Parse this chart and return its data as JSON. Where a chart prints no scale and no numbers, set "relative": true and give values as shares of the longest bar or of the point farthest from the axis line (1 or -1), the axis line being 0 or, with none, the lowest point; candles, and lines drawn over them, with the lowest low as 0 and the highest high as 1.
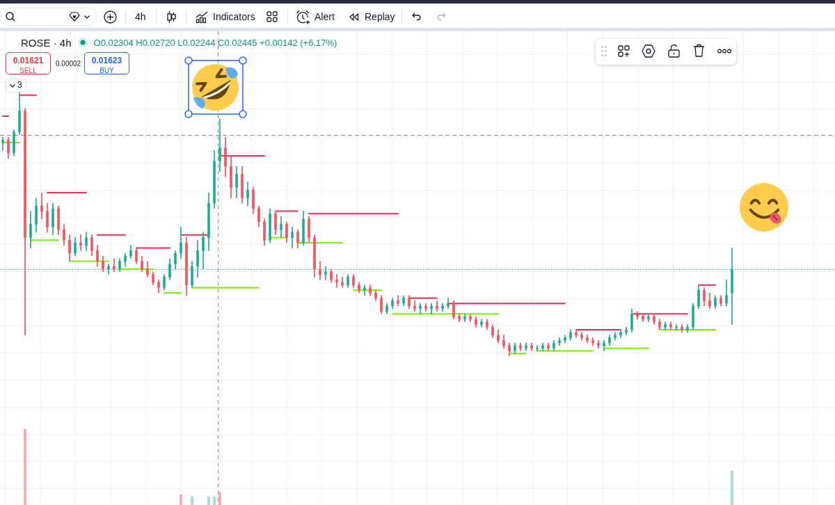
{
  "chart_data": [
    {
      "type": "candlestick",
      "title": "ROSE · 4h",
      "annotations": [
        "4h",
        "Indicators",
        "Alert",
        "Replay",
        "O0.02304 H0.02720 L0.02244 C0.02445 +0.00142 (+6.17%)",
        "0.01621",
        "SELL",
        "0.00002",
        "0.01623",
        "BUY",
        "3"
      ],
      "relative": true,
      "grid": true,
      "categories": [
        null,
        null,
        null,
        null,
        null,
        null,
        null,
        null,
        null,
        null,
        null,
        null,
        null,
        null,
        null,
        null,
        null,
        null,
        null,
        null,
        null,
        null,
        null,
        null,
        null,
        null,
        null,
        null,
        null,
        null,
        null,
        null,
        null,
        null,
        null,
        null,
        null,
        null,
        null,
        null,
        null,
        null,
        null,
        null,
        null,
        null,
        null,
        null,
        null,
        null,
        null,
        null,
        null,
        null,
        null,
        null,
        null,
        null,
        null,
        null,
        null,
        null,
        null,
        null,
        null,
        null,
        null,
        null,
        null,
        null,
        null,
        null,
        null,
        null,
        null,
        null,
        null,
        null,
        null,
        null,
        null,
        null,
        null,
        null,
        null,
        null,
        null,
        null,
        null,
        null,
        null,
        null,
        null,
        null,
        null,
        null,
        null,
        null,
        null,
        null,
        null,
        null,
        null,
        null,
        null,
        null,
        null,
        null,
        null,
        null,
        null,
        null,
        null,
        null,
        null,
        null,
        null,
        null,
        null,
        null,
        null,
        null,
        null,
        null,
        null,
        null,
        null,
        null,
        null,
        null,
        null,
        null,
        null,
        null,
        null,
        null,
        null,
        null,
        null,
        null,
        null,
        null,
        null,
        null,
        null,
        null,
        null,
        null,
        null,
        null
      ],
      "ohlc": [
        [
          0.81,
          0.83,
          0.78,
          0.82
        ],
        [
          0.82,
          0.83,
          0.75,
          0.77
        ],
        [
          0.77,
          0.86,
          0.76,
          0.85
        ],
        [
          0.85,
          1,
          0.84,
          0.93
        ],
        [
          0.93,
          0.94,
          0.08,
          0.45
        ],
        [
          0.45,
          0.55,
          0.41,
          0.5
        ],
        [
          0.5,
          0.6,
          0.47,
          0.57
        ],
        [
          0.57,
          0.62,
          0.52,
          0.55
        ],
        [
          0.55,
          0.58,
          0.47,
          0.49
        ],
        [
          0.49,
          0.58,
          0.46,
          0.56
        ],
        [
          0.56,
          0.57,
          0.46,
          0.48
        ],
        [
          0.48,
          0.5,
          0.42,
          0.44
        ],
        [
          0.44,
          0.46,
          0.36,
          0.39
        ],
        [
          0.39,
          0.45,
          0.38,
          0.43
        ],
        [
          0.43,
          0.46,
          0.4,
          0.42
        ],
        [
          0.42,
          0.47,
          0.4,
          0.45
        ],
        [
          0.45,
          0.46,
          0.38,
          0.4
        ],
        [
          0.4,
          0.42,
          0.34,
          0.36
        ],
        [
          0.36,
          0.38,
          0.32,
          0.33
        ],
        [
          0.33,
          0.35,
          0.31,
          0.34
        ],
        [
          0.34,
          0.37,
          0.32,
          0.33
        ],
        [
          0.33,
          0.37,
          0.32,
          0.36
        ],
        [
          0.36,
          0.39,
          0.34,
          0.38
        ],
        [
          0.38,
          0.42,
          0.37,
          0.4
        ],
        [
          0.4,
          0.41,
          0.35,
          0.36
        ],
        [
          0.36,
          0.38,
          0.32,
          0.33
        ],
        [
          0.33,
          0.36,
          0.3,
          0.31
        ],
        [
          0.31,
          0.32,
          0.27,
          0.28
        ],
        [
          0.28,
          0.29,
          0.24,
          0.26
        ],
        [
          0.26,
          0.31,
          0.25,
          0.3
        ],
        [
          0.3,
          0.37,
          0.29,
          0.35
        ],
        [
          0.35,
          0.4,
          0.33,
          0.39
        ],
        [
          0.39,
          0.49,
          0.37,
          0.43
        ],
        [
          0.43,
          0.45,
          0.23,
          0.27
        ],
        [
          0.27,
          0.36,
          0.26,
          0.34
        ],
        [
          0.34,
          0.44,
          0.3,
          0.4
        ],
        [
          0.4,
          0.47,
          0.33,
          0.45
        ],
        [
          0.45,
          0.62,
          0.4,
          0.58
        ],
        [
          0.58,
          0.78,
          0.56,
          0.74
        ],
        [
          0.74,
          0.9,
          0.7,
          0.79
        ],
        [
          0.79,
          0.83,
          0.68,
          0.72
        ],
        [
          0.72,
          0.76,
          0.6,
          0.64
        ],
        [
          0.64,
          0.72,
          0.6,
          0.69
        ],
        [
          0.69,
          0.72,
          0.58,
          0.6
        ],
        [
          0.6,
          0.66,
          0.57,
          0.63
        ],
        [
          0.63,
          0.64,
          0.54,
          0.56
        ],
        [
          0.56,
          0.57,
          0.49,
          0.51
        ],
        [
          0.51,
          0.52,
          0.42,
          0.44
        ],
        [
          0.44,
          0.56,
          0.43,
          0.54
        ],
        [
          0.54,
          0.55,
          0.46,
          0.48
        ],
        [
          0.48,
          0.53,
          0.45,
          0.5
        ],
        [
          0.5,
          0.51,
          0.43,
          0.45
        ],
        [
          0.45,
          0.49,
          0.41,
          0.47
        ],
        [
          0.47,
          0.48,
          0.41,
          0.43
        ],
        [
          0.43,
          0.55,
          0.42,
          0.52
        ],
        [
          0.52,
          0.53,
          0.43,
          0.45
        ],
        [
          0.45,
          0.46,
          0.3,
          0.33
        ],
        [
          0.33,
          0.36,
          0.29,
          0.31
        ],
        [
          0.31,
          0.34,
          0.29,
          0.32
        ],
        [
          0.32,
          0.33,
          0.28,
          0.29
        ],
        [
          0.29,
          0.31,
          0.26,
          0.28
        ],
        [
          0.28,
          0.3,
          0.26,
          0.27
        ],
        [
          0.27,
          0.31,
          0.26,
          0.3
        ],
        [
          0.3,
          0.31,
          0.26,
          0.27
        ],
        [
          0.27,
          0.28,
          0.24,
          0.25
        ],
        [
          0.25,
          0.27,
          0.23,
          0.26
        ],
        [
          0.26,
          0.27,
          0.23,
          0.24
        ],
        [
          0.24,
          0.25,
          0.21,
          0.22
        ],
        [
          0.22,
          0.23,
          0.16,
          0.17
        ],
        [
          0.17,
          0.2,
          0.16,
          0.19
        ],
        [
          0.19,
          0.22,
          0.18,
          0.21
        ],
        [
          0.21,
          0.23,
          0.19,
          0.2
        ],
        [
          0.2,
          0.23,
          0.19,
          0.22
        ],
        [
          0.22,
          0.23,
          0.18,
          0.19
        ],
        [
          0.19,
          0.21,
          0.17,
          0.18
        ],
        [
          0.18,
          0.2,
          0.16,
          0.19
        ],
        [
          0.19,
          0.2,
          0.17,
          0.18
        ],
        [
          0.18,
          0.2,
          0.16,
          0.19
        ],
        [
          0.19,
          0.21,
          0.17,
          0.18
        ],
        [
          0.18,
          0.2,
          0.17,
          0.19
        ],
        [
          0.19,
          0.22,
          0.18,
          0.2
        ],
        [
          0.2,
          0.21,
          0.14,
          0.15
        ],
        [
          0.15,
          0.16,
          0.13,
          0.14
        ],
        [
          0.14,
          0.16,
          0.13,
          0.15
        ],
        [
          0.15,
          0.16,
          0.13,
          0.14
        ],
        [
          0.14,
          0.15,
          0.11,
          0.12
        ],
        [
          0.12,
          0.14,
          0.11,
          0.13
        ],
        [
          0.13,
          0.14,
          0.1,
          0.11
        ],
        [
          0.11,
          0.12,
          0.07,
          0.08
        ],
        [
          0.08,
          0.1,
          0.05,
          0.06
        ],
        [
          0.06,
          0.08,
          0.03,
          0.04
        ],
        [
          0.04,
          0.05,
          0,
          0.02
        ],
        [
          0.02,
          0.05,
          0.01,
          0.04
        ],
        [
          0.04,
          0.05,
          0.02,
          0.03
        ],
        [
          0.03,
          0.05,
          0.02,
          0.04
        ],
        [
          0.04,
          0.05,
          0.02,
          0.03
        ],
        [
          0.03,
          0.04,
          0.02,
          0.03
        ],
        [
          0.03,
          0.05,
          0.02,
          0.04
        ],
        [
          0.04,
          0.05,
          0.02,
          0.03
        ],
        [
          0.03,
          0.06,
          0.02,
          0.05
        ],
        [
          0.05,
          0.07,
          0.04,
          0.06
        ],
        [
          0.06,
          0.08,
          0.05,
          0.07
        ],
        [
          0.07,
          0.1,
          0.06,
          0.09
        ],
        [
          0.09,
          0.1,
          0.07,
          0.08
        ],
        [
          0.08,
          0.09,
          0.06,
          0.07
        ],
        [
          0.07,
          0.08,
          0.05,
          0.06
        ],
        [
          0.06,
          0.07,
          0.04,
          0.05
        ],
        [
          0.05,
          0.06,
          0.03,
          0.04
        ],
        [
          0.04,
          0.06,
          0.02,
          0.05
        ],
        [
          0.05,
          0.08,
          0.04,
          0.07
        ],
        [
          0.07,
          0.09,
          0.06,
          0.08
        ],
        [
          0.08,
          0.1,
          0.07,
          0.09
        ],
        [
          0.09,
          0.11,
          0.08,
          0.1
        ],
        [
          0.1,
          0.18,
          0.09,
          0.16
        ],
        [
          0.16,
          0.17,
          0.14,
          0.15
        ],
        [
          0.15,
          0.16,
          0.13,
          0.14
        ],
        [
          0.14,
          0.16,
          0.13,
          0.15
        ],
        [
          0.15,
          0.16,
          0.12,
          0.13
        ],
        [
          0.13,
          0.14,
          0.1,
          0.11
        ],
        [
          0.11,
          0.13,
          0.1,
          0.12
        ],
        [
          0.12,
          0.13,
          0.1,
          0.11
        ],
        [
          0.11,
          0.12,
          0.1,
          0.11
        ],
        [
          0.11,
          0.12,
          0.09,
          0.1
        ],
        [
          0.1,
          0.12,
          0.09,
          0.11
        ],
        [
          0.11,
          0.2,
          0.1,
          0.19
        ],
        [
          0.19,
          0.27,
          0.18,
          0.25
        ],
        [
          0.25,
          0.26,
          0.19,
          0.21
        ],
        [
          0.21,
          0.24,
          0.18,
          0.19
        ],
        [
          0.19,
          0.23,
          0.18,
          0.22
        ],
        [
          0.22,
          0.23,
          0.19,
          0.2
        ],
        [
          0.2,
          0.29,
          0.19,
          0.23
        ],
        [
          0.24,
          0.41,
          0.12,
          0.33
        ],
        null,
        null,
        null,
        null,
        null,
        null,
        null,
        null,
        null,
        null,
        null,
        null,
        null,
        null,
        null,
        null,
        null,
        null
      ],
      "colors": [
        "#22ab94",
        "#f7525f",
        "#22ab94",
        "#22ab94",
        "#f7525f",
        "#22ab94",
        "#22ab94",
        "#f7525f",
        "#f7525f",
        "#22ab94",
        "#f7525f",
        "#f7525f",
        "#f7525f",
        "#22ab94",
        "#f7525f",
        "#22ab94",
        "#f7525f",
        "#f7525f",
        "#f7525f",
        "#22ab94",
        "#f7525f",
        "#22ab94",
        "#22ab94",
        "#22ab94",
        "#f7525f",
        "#f7525f",
        "#f7525f",
        "#f7525f",
        "#f7525f",
        "#22ab94",
        "#22ab94",
        "#22ab94",
        "#22ab94",
        "#f7525f",
        "#22ab94",
        "#22ab94",
        "#22ab94",
        "#22ab94",
        "#22ab94",
        "#22ab94",
        "#f7525f",
        "#f7525f",
        "#22ab94",
        "#f7525f",
        "#22ab94",
        "#f7525f",
        "#f7525f",
        "#f7525f",
        "#22ab94",
        "#f7525f",
        "#22ab94",
        "#f7525f",
        "#22ab94",
        "#f7525f",
        "#22ab94",
        "#f7525f",
        "#f7525f",
        "#f7525f",
        "#22ab94",
        "#f7525f",
        "#f7525f",
        "#f7525f",
        "#22ab94",
        "#f7525f",
        "#f7525f",
        "#22ab94",
        "#f7525f",
        "#f7525f",
        "#f7525f",
        "#22ab94",
        "#22ab94",
        "#f7525f",
        "#22ab94",
        "#f7525f",
        "#f7525f",
        "#22ab94",
        "#f7525f",
        "#22ab94",
        "#f7525f",
        "#22ab94",
        "#22ab94",
        "#f7525f",
        "#f7525f",
        "#22ab94",
        "#f7525f",
        "#f7525f",
        "#22ab94",
        "#f7525f",
        "#f7525f",
        "#f7525f",
        "#f7525f",
        "#f7525f",
        "#22ab94",
        "#f7525f",
        "#22ab94",
        "#f7525f",
        "#22ab94",
        "#22ab94",
        "#f7525f",
        "#22ab94",
        "#22ab94",
        "#22ab94",
        "#22ab94",
        "#f7525f",
        "#f7525f",
        "#f7525f",
        "#f7525f",
        "#f7525f",
        "#22ab94",
        "#22ab94",
        "#22ab94",
        "#22ab94",
        "#22ab94",
        "#22ab94",
        "#f7525f",
        "#f7525f",
        "#22ab94",
        "#f7525f",
        "#f7525f",
        "#22ab94",
        "#f7525f",
        "#22ab94",
        "#f7525f",
        "#22ab94",
        "#22ab94",
        "#22ab94",
        "#f7525f",
        "#f7525f",
        "#22ab94",
        "#f7525f",
        "#22ab94",
        "#22ab94",
        null,
        null,
        null,
        null,
        null,
        null,
        null,
        null,
        null,
        null,
        null,
        null,
        null,
        null,
        null,
        null,
        null,
        null
      ],
      "series": [
        {
          "type": "line",
          "color": "#f5295a",
          "values": [
            0.91,
            0.91,
            null,
            0.99,
            0.99,
            0.99,
            0.99,
            null,
            0.62,
            0.62,
            0.62,
            0.62,
            0.62,
            0.62,
            0.62,
            0.62,
            null,
            0.46,
            0.46,
            0.46,
            0.46,
            0.46,
            0.46,
            null,
            0.41,
            0.41,
            0.41,
            0.41,
            0.41,
            0.41,
            0.41,
            null,
            0.46,
            0.46,
            0.46,
            0.46,
            0.46,
            0.46,
            null,
            0.76,
            0.76,
            0.76,
            0.76,
            0.76,
            0.76,
            0.76,
            0.76,
            0.76,
            null,
            0.55,
            0.55,
            0.55,
            0.55,
            0.55,
            null,
            0.54,
            0.54,
            0.54,
            0.54,
            0.54,
            0.54,
            0.54,
            0.54,
            0.54,
            0.54,
            0.54,
            0.54,
            0.54,
            0.54,
            0.54,
            0.54,
            0.54,
            null,
            0.22,
            0.22,
            0.22,
            0.22,
            0.22,
            0.22,
            null,
            0.2,
            0.2,
            0.2,
            0.2,
            0.2,
            0.2,
            0.2,
            0.2,
            0.2,
            0.2,
            0.2,
            0.2,
            0.2,
            0.2,
            0.2,
            0.2,
            0.2,
            0.2,
            0.2,
            0.2,
            0.2,
            0.2,
            null,
            0.1,
            0.1,
            0.1,
            0.1,
            0.1,
            0.1,
            0.1,
            0.1,
            0.1,
            null,
            0.16,
            0.16,
            0.16,
            0.16,
            0.16,
            0.16,
            0.16,
            0.16,
            0.16,
            0.16,
            0.16,
            null,
            0.27,
            0.27,
            0.27,
            0.27,
            null,
            null,
            null,
            null,
            null,
            null,
            null,
            null,
            null,
            null,
            null,
            null,
            null,
            null,
            null,
            null,
            null,
            null,
            null,
            null,
            null
          ]
        },
        {
          "type": "line",
          "color": "#78f000",
          "values": [
            0.81,
            0.81,
            0.81,
            0.81,
            null,
            0.44,
            0.44,
            0.44,
            0.44,
            0.44,
            0.44,
            null,
            0.36,
            0.36,
            0.36,
            0.36,
            0.36,
            0.36,
            0.36,
            0.36,
            null,
            0.33,
            0.33,
            0.33,
            0.33,
            0.33,
            0.33,
            0.33,
            null,
            0.24,
            0.24,
            0.24,
            0.24,
            null,
            0.26,
            0.26,
            0.26,
            0.26,
            0.26,
            0.26,
            0.26,
            0.26,
            0.26,
            0.26,
            0.26,
            0.26,
            0.26,
            null,
            0.45,
            0.45,
            0.45,
            0.45,
            null,
            0.43,
            0.43,
            0.43,
            0.43,
            0.43,
            0.43,
            0.43,
            0.43,
            0.43,
            null,
            0.25,
            0.25,
            0.25,
            0.25,
            0.25,
            0.25,
            null,
            0.16,
            0.16,
            0.16,
            0.16,
            0.16,
            0.16,
            0.16,
            0.16,
            0.16,
            0.16,
            0.16,
            0.16,
            0.16,
            0.16,
            0.16,
            0.16,
            0.16,
            0.16,
            0.16,
            0.16,
            null,
            0.01,
            0.01,
            0.01,
            0.01,
            null,
            0.02,
            0.02,
            0.02,
            0.02,
            0.02,
            0.02,
            0.02,
            0.02,
            0.02,
            0.02,
            0.02,
            null,
            0.03,
            0.03,
            0.03,
            0.03,
            0.03,
            0.03,
            0.03,
            0.03,
            0.03,
            null,
            0.1,
            0.1,
            0.1,
            0.1,
            0.1,
            0.1,
            0.1,
            0.1,
            0.1,
            0.1,
            0.1,
            null,
            null,
            null,
            null,
            null,
            null,
            null,
            null,
            null,
            null,
            null,
            null,
            null,
            null,
            null,
            null,
            null,
            null,
            null,
            null,
            null
          ]
        }
      ],
      "ref_lines": [
        {
          "axis": "y",
          "value": 0.33,
          "color": "#22ab94",
          "line_style": "dotted"
        },
        {
          "axis": "y",
          "value": 0.84,
          "color": "#9598a1",
          "line_style": "dashed"
        }
      ]
    },
    {
      "type": "bar",
      "relative": true,
      "categories": [
        null,
        null,
        null,
        null,
        null,
        null,
        null,
        null,
        null,
        null,
        null,
        null,
        null,
        null,
        null,
        null,
        null,
        null,
        null,
        null,
        null,
        null,
        null,
        null,
        null,
        null,
        null,
        null,
        null,
        null,
        null,
        null,
        null,
        null,
        null,
        null,
        null,
        null,
        null,
        null,
        null,
        null,
        null,
        null,
        null,
        null,
        null,
        null,
        null,
        null,
        null,
        null,
        null,
        null,
        null,
        null,
        null,
        null,
        null,
        null,
        null,
        null,
        null,
        null,
        null,
        null,
        null,
        null,
        null,
        null,
        null,
        null,
        null,
        null,
        null,
        null,
        null,
        null,
        null,
        null,
        null,
        null,
        null,
        null,
        null,
        null,
        null,
        null,
        null,
        null,
        null,
        null,
        null,
        null,
        null,
        null,
        null,
        null,
        null,
        null,
        null,
        null,
        null,
        null,
        null,
        null,
        null,
        null,
        null,
        null,
        null,
        null,
        null,
        null,
        null,
        null,
        null,
        null,
        null,
        null,
        null,
        null,
        null,
        null,
        null,
        null,
        null,
        null,
        null,
        null,
        null,
        null,
        null,
        null,
        null,
        null,
        null,
        null,
        null,
        null,
        null,
        null,
        null,
        null,
        null,
        null,
        null,
        null,
        null,
        null
      ],
      "values": [
        null,
        null,
        null,
        null,
        1,
        null,
        null,
        null,
        null,
        null,
        null,
        null,
        null,
        null,
        null,
        null,
        null,
        null,
        null,
        null,
        null,
        null,
        null,
        null,
        null,
        null,
        null,
        null,
        null,
        null,
        null,
        null,
        0.14,
        null,
        0.11,
        null,
        null,
        0.11,
        0.11,
        0.17,
        null,
        null,
        null,
        null,
        null,
        null,
        null,
        null,
        null,
        null,
        null,
        null,
        null,
        null,
        null,
        null,
        null,
        null,
        null,
        null,
        null,
        null,
        null,
        null,
        null,
        null,
        null,
        null,
        null,
        null,
        null,
        null,
        null,
        null,
        null,
        null,
        null,
        null,
        null,
        null,
        null,
        null,
        null,
        null,
        null,
        null,
        null,
        null,
        null,
        null,
        null,
        null,
        null,
        null,
        null,
        null,
        null,
        null,
        null,
        null,
        null,
        null,
        null,
        null,
        null,
        null,
        null,
        null,
        null,
        null,
        null,
        null,
        null,
        null,
        null,
        null,
        null,
        null,
        null,
        null,
        null,
        null,
        null,
        null,
        null,
        null,
        null,
        null,
        null,
        null,
        null,
        0.45,
        null,
        null,
        null,
        null,
        null,
        null,
        null,
        null,
        null,
        null,
        null,
        null,
        null,
        null,
        null,
        null,
        null,
        null
      ],
      "colors": [
        null,
        null,
        null,
        null,
        "#f7a9b0",
        null,
        null,
        null,
        null,
        null,
        null,
        null,
        null,
        null,
        null,
        null,
        null,
        null,
        null,
        null,
        null,
        null,
        null,
        null,
        null,
        null,
        null,
        null,
        null,
        null,
        null,
        null,
        "#f7a9b0",
        null,
        "#a2dcd3",
        null,
        null,
        "#a2dcd3",
        "#a2dcd3",
        "#f7a9b0",
        null,
        null,
        null,
        null,
        null,
        null,
        null,
        null,
        null,
        null,
        null,
        null,
        null,
        null,
        null,
        null,
        null,
        null,
        null,
        null,
        null,
        null,
        null,
        null,
        null,
        null,
        null,
        null,
        null,
        null,
        null,
        null,
        null,
        null,
        null,
        null,
        null,
        null,
        null,
        null,
        null,
        null,
        null,
        null,
        null,
        null,
        null,
        null,
        null,
        null,
        null,
        null,
        null,
        null,
        null,
        null,
        null,
        null,
        null,
        null,
        null,
        null,
        null,
        null,
        null,
        null,
        null,
        null,
        null,
        null,
        null,
        null,
        null,
        null,
        null,
        null,
        null,
        null,
        null,
        null,
        null,
        null,
        null,
        null,
        null,
        null,
        null,
        null,
        null,
        null,
        null,
        "#a2dcd3",
        null,
        null,
        null,
        null,
        null,
        null,
        null,
        null,
        null,
        null,
        null,
        null,
        null,
        null,
        null,
        null,
        null,
        null
      ]
    }
  ]
}
